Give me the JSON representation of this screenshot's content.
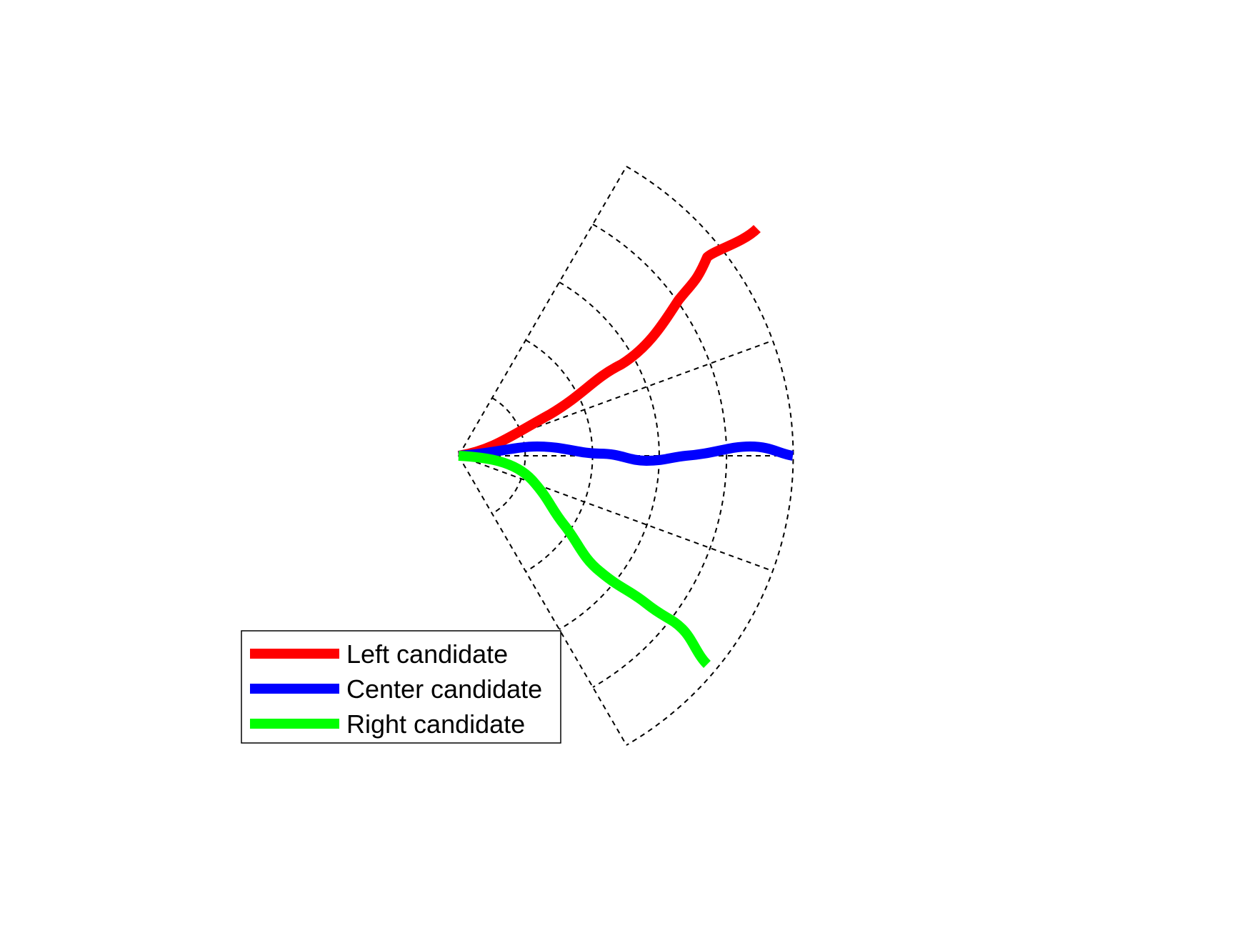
{
  "diagram": {
    "sector": {
      "radial_line_angles_deg": [
        60,
        20,
        0,
        -20,
        -60
      ],
      "arc_count": 5
    },
    "candidates": [
      {
        "id": "left",
        "label": "Left candidate",
        "color": "#ff0000"
      },
      {
        "id": "center",
        "label": "Center candidate",
        "color": "#0000ff"
      },
      {
        "id": "right",
        "label": "Right candidate",
        "color": "#00ff00"
      }
    ]
  },
  "legend": {
    "items": [
      {
        "label": "Left candidate",
        "color": "#ff0000"
      },
      {
        "label": "Center candidate",
        "color": "#0000ff"
      },
      {
        "label": "Right candidate",
        "color": "#00ff00"
      }
    ]
  }
}
